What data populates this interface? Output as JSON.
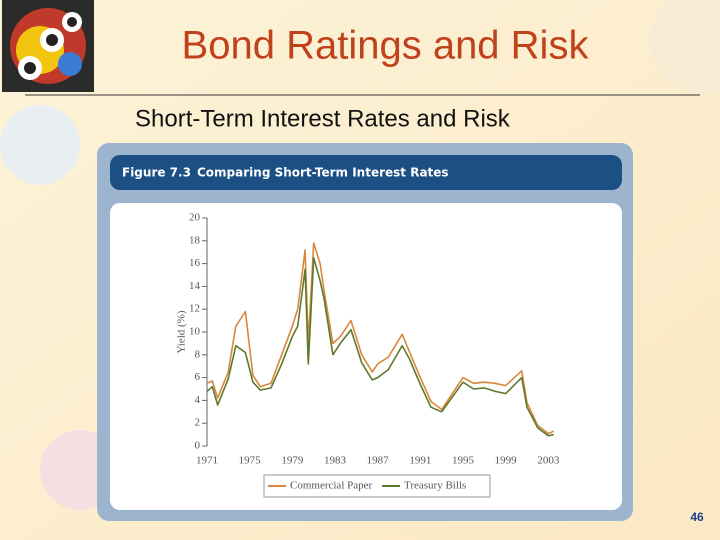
{
  "slide": {
    "title": "Bond Ratings and Risk",
    "subtitle": "Short-Term Interest Rates and Risk",
    "page_number": "46"
  },
  "figure": {
    "label": "Figure 7.3",
    "title": "Comparing Short-Term Interest Rates"
  },
  "chart_data": {
    "type": "line",
    "y_label": "Yield (%)",
    "x": [
      1971,
      1971.5,
      1972,
      1973,
      1973.7,
      1974.6,
      1975.3,
      1976,
      1977,
      1978,
      1979,
      1979.5,
      1980.2,
      1980.5,
      1981,
      1981.6,
      1982,
      1982.8,
      1983.5,
      1984.5,
      1985.5,
      1986.5,
      1987,
      1988,
      1989.3,
      1990,
      1991,
      1992,
      1993,
      1994,
      1995,
      1996,
      1997,
      1998,
      1999,
      2000.5,
      2001,
      2002,
      2003,
      2003.5
    ],
    "series": [
      {
        "name": "Commercial Paper",
        "color": "#d9873c",
        "values": [
          5.5,
          5.7,
          4.2,
          6.5,
          10.5,
          11.8,
          6.2,
          5.2,
          5.5,
          8.0,
          10.5,
          12.0,
          17.2,
          9.0,
          17.8,
          16.0,
          13.5,
          9.0,
          9.6,
          11.0,
          8.0,
          6.5,
          7.2,
          7.8,
          9.8,
          8.2,
          6.0,
          3.9,
          3.2,
          4.6,
          6.0,
          5.5,
          5.6,
          5.5,
          5.3,
          6.6,
          3.8,
          1.8,
          1.1,
          1.3
        ]
      },
      {
        "name": "Treasury Bills",
        "color": "#5c7a2c",
        "values": [
          4.8,
          5.2,
          3.6,
          5.9,
          8.8,
          8.2,
          5.6,
          4.9,
          5.1,
          7.2,
          9.6,
          10.5,
          15.5,
          7.2,
          16.5,
          14.5,
          12.8,
          8.0,
          9.0,
          10.2,
          7.3,
          5.8,
          6.0,
          6.7,
          8.8,
          7.6,
          5.4,
          3.4,
          3.0,
          4.3,
          5.6,
          5.0,
          5.1,
          4.8,
          4.6,
          6.0,
          3.4,
          1.6,
          0.9,
          1.0
        ]
      }
    ],
    "xlim": [
      1971,
      2004
    ],
    "xticks": [
      1971,
      1975,
      1979,
      1983,
      1987,
      1991,
      1995,
      1999,
      2003
    ],
    "ylim": [
      0,
      20
    ],
    "yticks": [
      0,
      2,
      4,
      6,
      8,
      10,
      12,
      14,
      16,
      18,
      20
    ],
    "grid": false,
    "legend": "bottom"
  }
}
